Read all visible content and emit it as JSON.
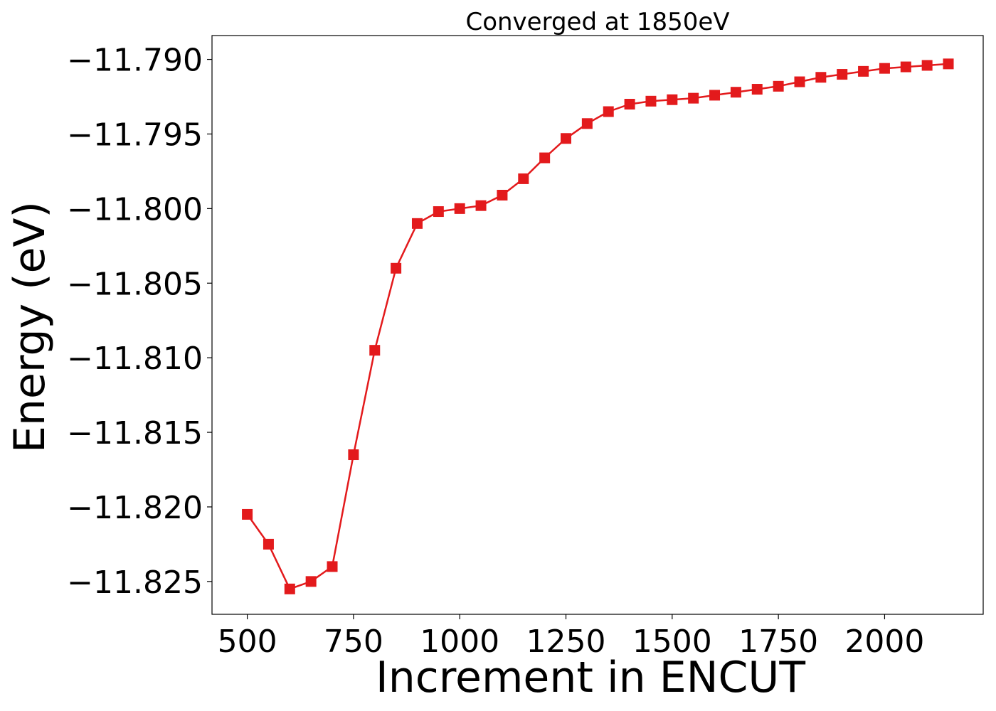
{
  "chart_data": {
    "type": "line",
    "title": "Converged at 1850eV",
    "xlabel": "Increment in ENCUT",
    "ylabel": "Energy (eV)",
    "xlim": [
      417,
      2232
    ],
    "ylim": [
      -11.8272,
      -11.7884
    ],
    "grid": false,
    "legend": "none",
    "x_ticks": [
      500,
      750,
      1000,
      1250,
      1500,
      1750,
      2000
    ],
    "x_tick_labels": [
      "500",
      "750",
      "1000",
      "1250",
      "1500",
      "1750",
      "2000"
    ],
    "y_ticks": [
      -11.79,
      -11.795,
      -11.8,
      -11.805,
      -11.81,
      -11.815,
      -11.82,
      -11.825
    ],
    "y_tick_labels": [
      "−11.790",
      "−11.795",
      "−11.800",
      "−11.805",
      "−11.810",
      "−11.815",
      "−11.820",
      "−11.825"
    ],
    "series": [
      {
        "color": "#e31a1c",
        "marker": "square",
        "x": [
          500,
          550,
          600,
          650,
          700,
          750,
          800,
          850,
          900,
          950,
          1000,
          1050,
          1100,
          1150,
          1200,
          1250,
          1300,
          1350,
          1400,
          1450,
          1500,
          1550,
          1600,
          1650,
          1700,
          1750,
          1800,
          1850,
          1900,
          1950,
          2000,
          2050,
          2100,
          2150
        ],
        "y": [
          -11.8205,
          -11.8225,
          -11.8255,
          -11.825,
          -11.824,
          -11.8165,
          -11.8095,
          -11.804,
          -11.801,
          -11.8002,
          -11.8,
          -11.7998,
          -11.7991,
          -11.798,
          -11.7966,
          -11.7953,
          -11.7943,
          -11.7935,
          -11.793,
          -11.7928,
          -11.7927,
          -11.7926,
          -11.7924,
          -11.7922,
          -11.792,
          -11.7918,
          -11.7915,
          -11.7912,
          -11.791,
          -11.7908,
          -11.7906,
          -11.7905,
          -11.7904,
          -11.7903
        ]
      }
    ]
  }
}
